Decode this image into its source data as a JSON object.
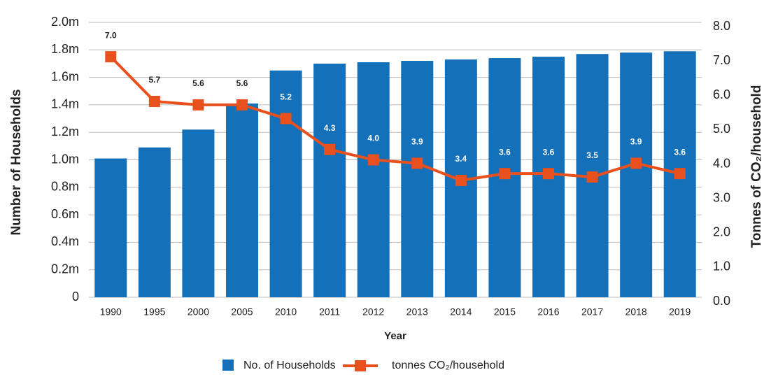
{
  "chart_data": {
    "type": "bar_line",
    "categories": [
      "1990",
      "1995",
      "2000",
      "2005",
      "2010",
      "2011",
      "2012",
      "2013",
      "2014",
      "2015",
      "2016",
      "2017",
      "2018",
      "2019"
    ],
    "series": [
      {
        "name": "No. of Households",
        "color": "#1470b8",
        "type": "bar",
        "axis": "y",
        "values": [
          1010000,
          1090000,
          1220000,
          1410000,
          1650000,
          1700000,
          1710000,
          1720000,
          1730000,
          1740000,
          1750000,
          1770000,
          1780000,
          1790000
        ]
      },
      {
        "name": "tonnes CO₂/household",
        "color": "#e8501e",
        "type": "line",
        "axis": "y2",
        "values": [
          7.0,
          5.7,
          5.6,
          5.6,
          5.2,
          4.3,
          4.0,
          3.9,
          3.4,
          3.6,
          3.6,
          3.5,
          3.9,
          3.6
        ]
      }
    ],
    "x_label": "Year",
    "y_label": "Number of Households",
    "y2_label": "Tonnes of CO₂/household",
    "ylim": [
      0,
      2000000
    ],
    "yticks": [
      0,
      {
        "value": 200000,
        "label": "0.2m"
      },
      {
        "value": 400000,
        "label": "0.4m"
      },
      {
        "value": 600000,
        "label": "0.6m"
      },
      {
        "value": 800000,
        "label": "0.8m"
      },
      {
        "value": 1000000,
        "label": "1.0m"
      },
      {
        "value": 1200000,
        "label": "1.2m"
      },
      {
        "value": 1400000,
        "label": "1.4m"
      },
      {
        "value": 1600000,
        "label": "1.6m"
      },
      {
        "value": 1800000,
        "label": "1.8m"
      },
      {
        "value": 2000000,
        "label": "2.0m"
      }
    ],
    "y2lim": [
      0,
      8
    ],
    "y2ticks": [
      {
        "value": 0,
        "label": "0.0"
      },
      {
        "value": 1,
        "label": "1.0"
      },
      {
        "value": 2,
        "label": "2.0"
      },
      {
        "value": 3,
        "label": "3.0"
      },
      {
        "value": 4,
        "label": "4.0"
      },
      {
        "value": 5,
        "label": "5.0"
      },
      {
        "value": 6,
        "label": "6.0"
      },
      {
        "value": 7,
        "label": "7.0"
      },
      {
        "value": 8,
        "label": "8.0"
      }
    ],
    "grid": true,
    "legend": "bottom"
  }
}
